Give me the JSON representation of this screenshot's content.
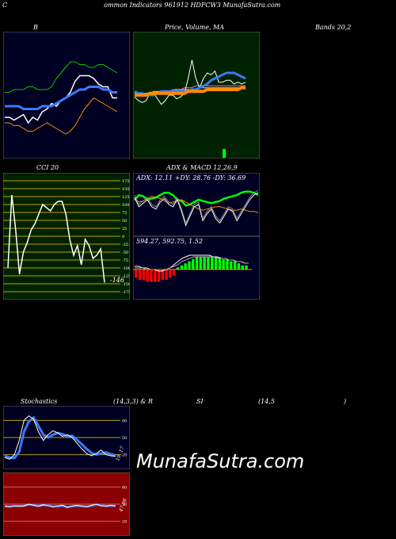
{
  "header": {
    "title_c": "C",
    "title_rest": "ommon Indicators 961912 HDFCW3 MunafaSutra.com"
  },
  "labels": {
    "bb": "B",
    "price_ma": "Price,  Volume,  MA",
    "bands": "Bands 20,2",
    "cci": "CCI 20",
    "adx_macd": "ADX  & MACD 12,26,9",
    "adx_readout": "ADX: 12.11  +DY: 28.76  -DY: 36.69",
    "macd_readout": "594.27,  592.75,  1.52",
    "stoch": "Stochastics",
    "stoch_params": "(14,3,3) & R",
    "rsi": "SI",
    "rsi_params": "(14,5",
    "rsi_close": ")",
    "cci_value": "-146",
    "stoch_value": "19, 17",
    "rsi_value": "47.08"
  },
  "watermark": "MunafaSutra.com",
  "colors": {
    "panel_dark": "#000022",
    "panel_green": "#002200",
    "panel_red": "#8b0000",
    "blue": "#3a7bff",
    "orange": "#ff8c00",
    "green": "#00cc00",
    "bright_green": "#00ff00",
    "red": "#ff0000"
  },
  "chart_data": [
    {
      "type": "line",
      "name": "bollinger",
      "series": [
        {
          "values": [
            22,
            22,
            21,
            22,
            23,
            20,
            22,
            21,
            24,
            25,
            27,
            26,
            28,
            29,
            31,
            35,
            37,
            37,
            37,
            36,
            34,
            33,
            33,
            29,
            29
          ],
          "color": "#ffffff"
        },
        {
          "values": [
            31,
            31,
            32,
            32,
            32,
            33,
            33,
            32,
            32,
            32,
            33,
            36,
            38,
            40,
            42,
            42,
            41,
            41,
            40,
            40,
            41,
            41,
            40,
            39,
            38
          ],
          "color": "#00cc00"
        },
        {
          "values": [
            26,
            26,
            26,
            26,
            25,
            25,
            25,
            25,
            26,
            26,
            26,
            27,
            28,
            29,
            30,
            31,
            32,
            32,
            33,
            33,
            33,
            32,
            32,
            31,
            31
          ],
          "color": "#3a7bff"
        },
        {
          "values": [
            20,
            20,
            19,
            19,
            18,
            17,
            17,
            18,
            19,
            20,
            19,
            18,
            17,
            16,
            17,
            19,
            22,
            25,
            27,
            29,
            28,
            27,
            26,
            25,
            24
          ],
          "color": "#ff8c00"
        }
      ],
      "ylim": [
        10,
        50
      ]
    },
    {
      "type": "line",
      "name": "price_volume_ma",
      "series": [
        {
          "values": [
            29,
            27,
            26,
            27,
            31,
            31,
            28,
            25,
            27,
            30,
            30,
            28,
            29,
            31,
            39,
            49,
            39,
            34,
            39,
            42,
            41,
            43,
            37,
            37,
            38,
            38,
            36,
            37,
            36,
            37
          ],
          "color": "#ffffff"
        },
        {
          "values": [
            32,
            31,
            31,
            30,
            30,
            30,
            31,
            32,
            32,
            32,
            32,
            32,
            32,
            32,
            32,
            33,
            33,
            34,
            35,
            36,
            38,
            39,
            40,
            41,
            42,
            42,
            42,
            41,
            40,
            39
          ],
          "color": "#3a7bff"
        },
        {
          "values": [
            30,
            30,
            30,
            30,
            31,
            31,
            31,
            31,
            31,
            31,
            31,
            31,
            31,
            31,
            32,
            32,
            32,
            32,
            32,
            33,
            33,
            33,
            33,
            33,
            33,
            33,
            33,
            33,
            34,
            34
          ],
          "color": "#ff8c00"
        }
      ],
      "ylim": [
        0,
        60
      ]
    },
    {
      "type": "line",
      "name": "cci",
      "values": [
        -100,
        130,
        20,
        -120,
        -50,
        -20,
        20,
        40,
        70,
        100,
        90,
        80,
        100,
        110,
        110,
        70,
        -10,
        -60,
        -30,
        -90,
        -10,
        -30,
        -70,
        -60,
        -40,
        -146
      ],
      "ylim": [
        -175,
        175
      ],
      "ticks": [
        175,
        150,
        125,
        100,
        75,
        50,
        25,
        0,
        -25,
        -50,
        -75,
        -100,
        -125,
        -150,
        -175
      ],
      "tick_labels": [
        "175",
        "150",
        "125",
        "100",
        "75",
        "50",
        "25",
        "0",
        "-25",
        "-50",
        "-75",
        "-100",
        "-125",
        "-150",
        "-175"
      ]
    },
    {
      "type": "line",
      "name": "adx",
      "series": [
        {
          "values": [
            30,
            34,
            33,
            30,
            31,
            32,
            34,
            36,
            36,
            34,
            30,
            29,
            25,
            26,
            28,
            30,
            29,
            28,
            27,
            28,
            29,
            31,
            32,
            33,
            34,
            36,
            37,
            37,
            36,
            34
          ],
          "color": "#00ff00"
        },
        {
          "values": [
            30,
            28,
            29,
            31,
            33,
            32,
            31,
            29,
            27,
            28,
            29,
            30,
            28,
            26,
            24,
            22,
            21,
            22,
            23,
            24,
            24,
            23,
            22,
            21,
            21,
            22,
            21,
            20,
            20,
            19
          ],
          "color": "#ff8c00"
        },
        {
          "values": [
            32,
            24,
            27,
            30,
            24,
            22,
            28,
            31,
            26,
            24,
            30,
            20,
            8,
            16,
            24,
            26,
            12,
            18,
            22,
            14,
            10,
            16,
            22,
            20,
            12,
            18,
            24,
            30,
            34,
            36
          ],
          "color": "#ffffff"
        }
      ],
      "ylim": [
        0,
        45
      ]
    },
    {
      "type": "bar",
      "name": "macd",
      "values": [
        -4,
        -5,
        -5,
        -6,
        -6,
        -6,
        -6,
        -5,
        -5,
        -4,
        -3,
        1,
        2,
        3,
        4,
        5,
        6,
        6,
        6,
        6,
        6,
        6,
        6,
        5,
        5,
        4,
        4,
        3,
        2,
        2
      ],
      "ylim": [
        -10,
        10
      ]
    },
    {
      "type": "line",
      "name": "stochastics",
      "series": [
        {
          "values": [
            15,
            12,
            20,
            45,
            80,
            88,
            82,
            60,
            45,
            55,
            62,
            58,
            52,
            55,
            50,
            40,
            30,
            22,
            18,
            22,
            28,
            20,
            18,
            17
          ],
          "color": "#ffffff"
        },
        {
          "values": [
            18,
            15,
            14,
            25,
            60,
            78,
            85,
            70,
            55,
            50,
            55,
            58,
            56,
            52,
            53,
            46,
            38,
            30,
            23,
            20,
            22,
            24,
            21,
            19
          ],
          "color": "#3a7bff"
        }
      ],
      "ylim": [
        0,
        100
      ],
      "ticks": [
        80,
        50,
        20
      ],
      "tick_labels": [
        "80",
        "50",
        "20"
      ]
    },
    {
      "type": "line",
      "name": "rsi",
      "series": [
        {
          "values": [
            46,
            45,
            47,
            46,
            47,
            50,
            48,
            46,
            49,
            47,
            45,
            47,
            48,
            44,
            47,
            48,
            46,
            45,
            48,
            50,
            47,
            46,
            48,
            47
          ],
          "color": "#ffffff"
        },
        {
          "values": [
            47,
            46,
            47,
            47,
            47,
            49,
            48,
            47,
            48,
            48,
            46,
            46,
            47,
            45,
            46,
            47,
            47,
            46,
            47,
            49,
            48,
            47,
            47,
            47
          ],
          "color": "#3a7bff"
        }
      ],
      "ylim": [
        0,
        100
      ],
      "ticks": [
        80,
        50,
        20
      ],
      "tick_labels": [
        "80",
        "50",
        "20"
      ]
    }
  ]
}
